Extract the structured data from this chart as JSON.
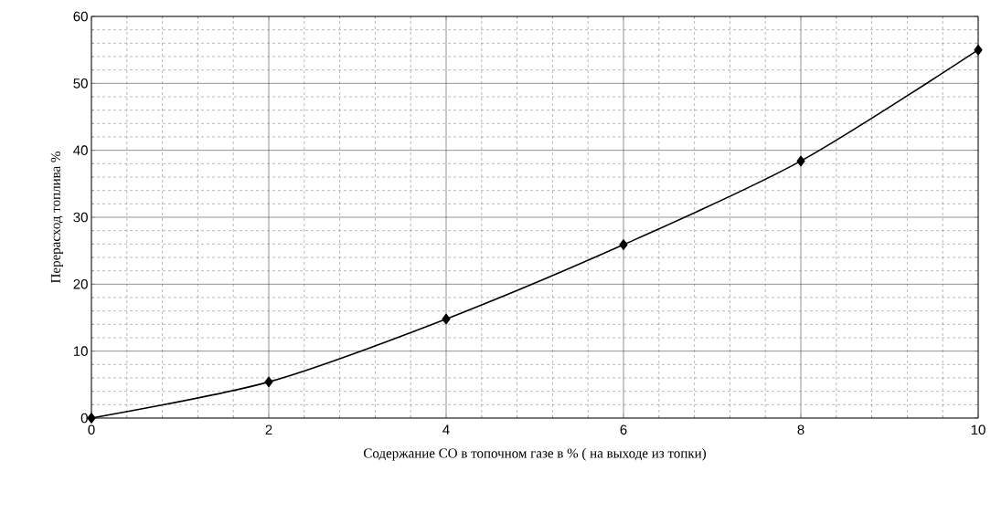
{
  "chart_data": {
    "type": "line",
    "xlabel": "Содержание CO в топочном газе в % ( на выходе из топки)",
    "ylabel": "Перерасход топлива %",
    "x": [
      0,
      2,
      4,
      6,
      8,
      10
    ],
    "series": [
      {
        "color": "#000000",
        "values": [
          0,
          5.4,
          14.8,
          25.9,
          38.4,
          55.0
        ]
      }
    ],
    "xlim": [
      0,
      10
    ],
    "ylim": [
      0,
      60
    ],
    "xticks": [
      0,
      2,
      4,
      6,
      8,
      10
    ],
    "yticks": [
      0,
      10,
      20,
      30,
      40,
      50,
      60
    ],
    "grid": true,
    "marker": "diamond",
    "line_style": "solid"
  }
}
